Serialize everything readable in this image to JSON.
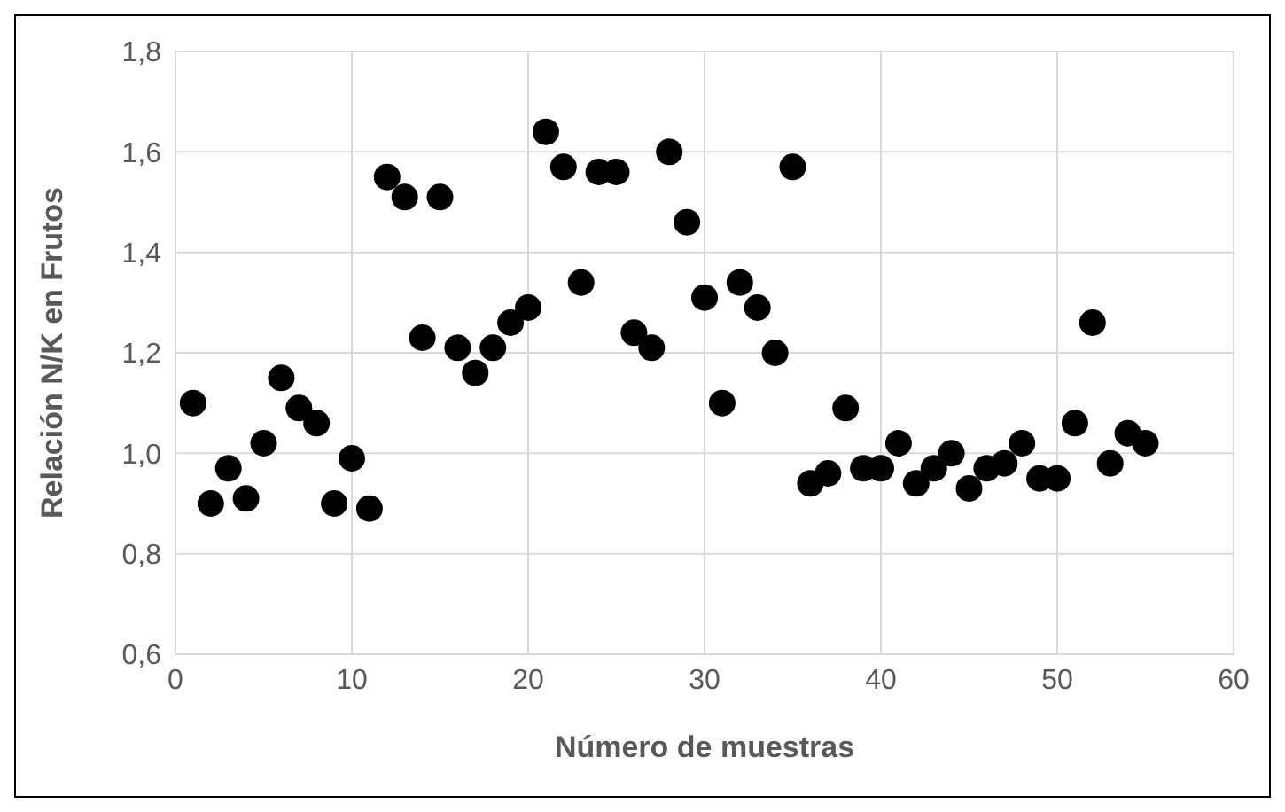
{
  "chart_data": {
    "type": "scatter",
    "xlabel": "Número de muestras",
    "ylabel": "Relación N/K en Frutos",
    "x": [
      1,
      2,
      3,
      4,
      5,
      6,
      7,
      8,
      9,
      10,
      11,
      12,
      13,
      14,
      15,
      16,
      17,
      18,
      19,
      20,
      21,
      22,
      23,
      24,
      25,
      26,
      27,
      28,
      29,
      30,
      31,
      32,
      33,
      34,
      35,
      36,
      37,
      38,
      39,
      40,
      41,
      42,
      43,
      44,
      45,
      46,
      47,
      48,
      49,
      50,
      51,
      52,
      53,
      54,
      55
    ],
    "series": [
      {
        "color": "#000000",
        "values": [
          1.1,
          0.9,
          0.97,
          0.91,
          1.02,
          1.15,
          1.09,
          1.06,
          0.9,
          0.99,
          0.89,
          1.55,
          1.51,
          1.23,
          1.51,
          1.21,
          1.16,
          1.21,
          1.26,
          1.29,
          1.64,
          1.57,
          1.34,
          1.56,
          1.56,
          1.24,
          1.21,
          1.6,
          1.46,
          1.31,
          1.1,
          1.34,
          1.29,
          1.2,
          1.57,
          0.94,
          0.96,
          1.09,
          0.97,
          0.97,
          1.02,
          0.94,
          0.97,
          1.0,
          0.93,
          0.97,
          0.98,
          1.02,
          0.95,
          0.95,
          1.06,
          1.26,
          0.98,
          1.04,
          1.02
        ]
      }
    ],
    "xlim": [
      0,
      60
    ],
    "xticks": [
      0,
      10,
      20,
      30,
      40,
      50,
      60
    ],
    "ylim": [
      0.6,
      1.8
    ],
    "yticks": [
      {
        "value": 0.6,
        "label": "0,6"
      },
      {
        "value": 0.8,
        "label": "0,8"
      },
      {
        "value": 1.0,
        "label": "1,0"
      },
      {
        "value": 1.2,
        "label": "1,2"
      },
      {
        "value": 1.4,
        "label": "1,4"
      },
      {
        "value": 1.6,
        "label": "1,6"
      },
      {
        "value": 1.8,
        "label": "1,8"
      }
    ],
    "grid": true,
    "marker": "circle",
    "legend": false
  }
}
